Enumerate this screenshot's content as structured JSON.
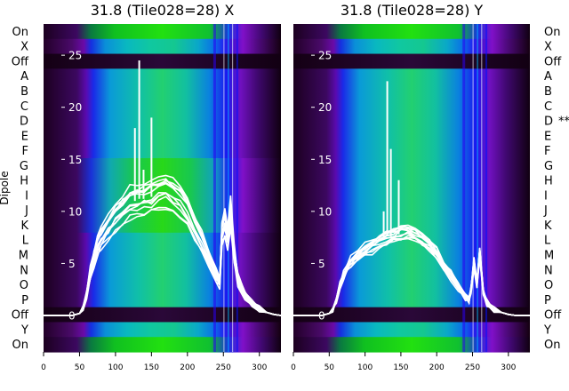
{
  "chart_data": [
    {
      "type": "heatmap",
      "title": "31.8 (Tile028=28) X",
      "xlabel": "",
      "ylabel": "Dipole",
      "xlim": [
        0,
        330
      ],
      "xticks": [
        0,
        50,
        100,
        150,
        200,
        250,
        300
      ],
      "overlay_ylim": [
        -3.5,
        28
      ],
      "overlay_yticks": [
        0,
        5,
        10,
        15,
        20,
        25
      ],
      "row_labels": [
        "On",
        "X",
        "Off",
        "A",
        "B",
        "C",
        "D",
        "E",
        "F",
        "G",
        "H",
        "I",
        "J",
        "K",
        "L",
        "M",
        "N",
        "O",
        "P",
        "Off",
        "Y",
        "On"
      ],
      "row_label_side": "left",
      "flagged_rows": [],
      "overlay_series": {
        "name": "",
        "x": [
          0,
          40,
          50,
          55,
          60,
          65,
          70,
          75,
          80,
          90,
          100,
          110,
          120,
          130,
          140,
          150,
          160,
          170,
          180,
          190,
          200,
          210,
          220,
          230,
          240,
          245,
          248,
          252,
          256,
          260,
          265,
          270,
          280,
          290,
          300,
          310,
          320,
          330
        ],
        "y": [
          0,
          0,
          0.2,
          0.8,
          2,
          4,
          5.5,
          6.8,
          7.5,
          8.5,
          9.5,
          10.2,
          10.8,
          11,
          11.2,
          11.4,
          11.8,
          12,
          11.5,
          11,
          10,
          8.5,
          7,
          5.5,
          3.8,
          3.2,
          8,
          9,
          7.5,
          10,
          6,
          3.5,
          2,
          1.2,
          0.6,
          0.3,
          0.1,
          0
        ],
        "spikes": [
          [
            127,
            18
          ],
          [
            133,
            24.5
          ],
          [
            139,
            14
          ],
          [
            150,
            19
          ]
        ],
        "bundle_count": 12,
        "spread": 1.3
      }
    },
    {
      "type": "heatmap",
      "title": "31.8 (Tile028=28) Y",
      "xlabel": "",
      "ylabel": "",
      "xlim": [
        0,
        330
      ],
      "xticks": [
        0,
        50,
        100,
        150,
        200,
        250,
        300
      ],
      "overlay_ylim": [
        -3.5,
        28
      ],
      "overlay_yticks": [
        0,
        5,
        10,
        15,
        20,
        25
      ],
      "row_labels": [
        "On",
        "X",
        "Off",
        "A",
        "B",
        "C",
        "D",
        "E",
        "F",
        "G",
        "H",
        "I",
        "J",
        "K",
        "L",
        "M",
        "N",
        "O",
        "P",
        "Off",
        "Y",
        "On"
      ],
      "row_label_side": "right",
      "flagged_rows": [
        {
          "row": "D",
          "mark": "**"
        }
      ],
      "overlay_series": {
        "name": "",
        "x": [
          0,
          40,
          50,
          55,
          60,
          65,
          70,
          75,
          80,
          90,
          100,
          110,
          120,
          130,
          140,
          150,
          160,
          170,
          180,
          190,
          200,
          210,
          220,
          230,
          240,
          245,
          248,
          252,
          256,
          260,
          265,
          270,
          280,
          290,
          300,
          310,
          320,
          330
        ],
        "y": [
          0,
          0,
          0.2,
          0.6,
          1.5,
          2.8,
          3.8,
          4.5,
          5,
          5.6,
          6.2,
          6.6,
          7,
          7.3,
          7.6,
          7.8,
          7.9,
          7.6,
          7.2,
          6.6,
          5.8,
          4.8,
          3.8,
          2.8,
          1.8,
          1.5,
          2.5,
          5,
          3,
          6,
          2.2,
          1.2,
          0.6,
          0.3,
          0.1,
          0,
          0,
          0
        ],
        "spikes": [
          [
            126,
            10
          ],
          [
            131,
            22.5
          ],
          [
            136,
            16
          ],
          [
            147,
            13
          ]
        ],
        "bundle_count": 12,
        "spread": 1.1
      }
    }
  ]
}
